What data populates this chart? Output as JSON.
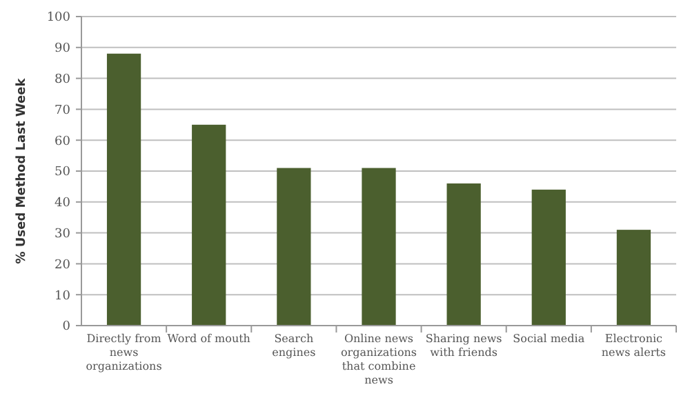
{
  "chart_data": {
    "type": "bar",
    "ylabel": "% Used Method Last Week",
    "categories": [
      "Directly from news organizations",
      "Word of mouth",
      "Search engines",
      "Online news organizations that combine news",
      "Sharing news with friends",
      "Social media",
      "Electronic news alerts"
    ],
    "values": [
      88,
      65,
      51,
      51,
      46,
      44,
      31
    ],
    "color": "#4b5f2e",
    "ylim": [
      0,
      100
    ],
    "yticks": [
      0,
      10,
      20,
      30,
      40,
      50,
      60,
      70,
      80,
      90,
      100
    ],
    "grid": "y"
  }
}
